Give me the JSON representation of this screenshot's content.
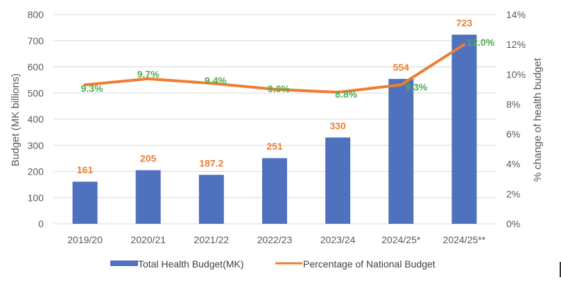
{
  "chart_data": {
    "type": "bar+line",
    "title": "",
    "categories": [
      "2019/20",
      "2020/21",
      "2021/22",
      "2022/23",
      "2023/24",
      "2024/25*",
      "2024/25**"
    ],
    "series": [
      {
        "name": "Total Health Budget(MK)",
        "type": "bar",
        "axis": "left",
        "color": "#4F71BE",
        "values": [
          161,
          205,
          187.2,
          251,
          330,
          554,
          723
        ],
        "labels": [
          "161",
          "205",
          "187.2",
          "251",
          "330",
          "554",
          "723"
        ],
        "label_color": "#ED7D31"
      },
      {
        "name": "Percentage of National Budget",
        "type": "line",
        "axis": "right",
        "color": "#ED7D31",
        "values": [
          9.3,
          9.7,
          9.4,
          9.0,
          8.8,
          9.3,
          12.0
        ],
        "labels": [
          "9.3%",
          "9.7%",
          "9.4%",
          "9.0%",
          "8.8%",
          "9.3%",
          "12.0%"
        ],
        "label_color": "#4CAF50"
      }
    ],
    "ylabel": "Budget (MK billions)",
    "y2label": "% change of health budget",
    "ylim": [
      0,
      800
    ],
    "yticks": [
      "0",
      "100",
      "200",
      "300",
      "400",
      "500",
      "600",
      "700",
      "800"
    ],
    "y2lim": [
      0,
      14
    ],
    "y2ticks": [
      "0%",
      "2%",
      "4%",
      "6%",
      "8%",
      "10%",
      "12%",
      "14%"
    ],
    "grid": true,
    "legend": "bottom"
  }
}
